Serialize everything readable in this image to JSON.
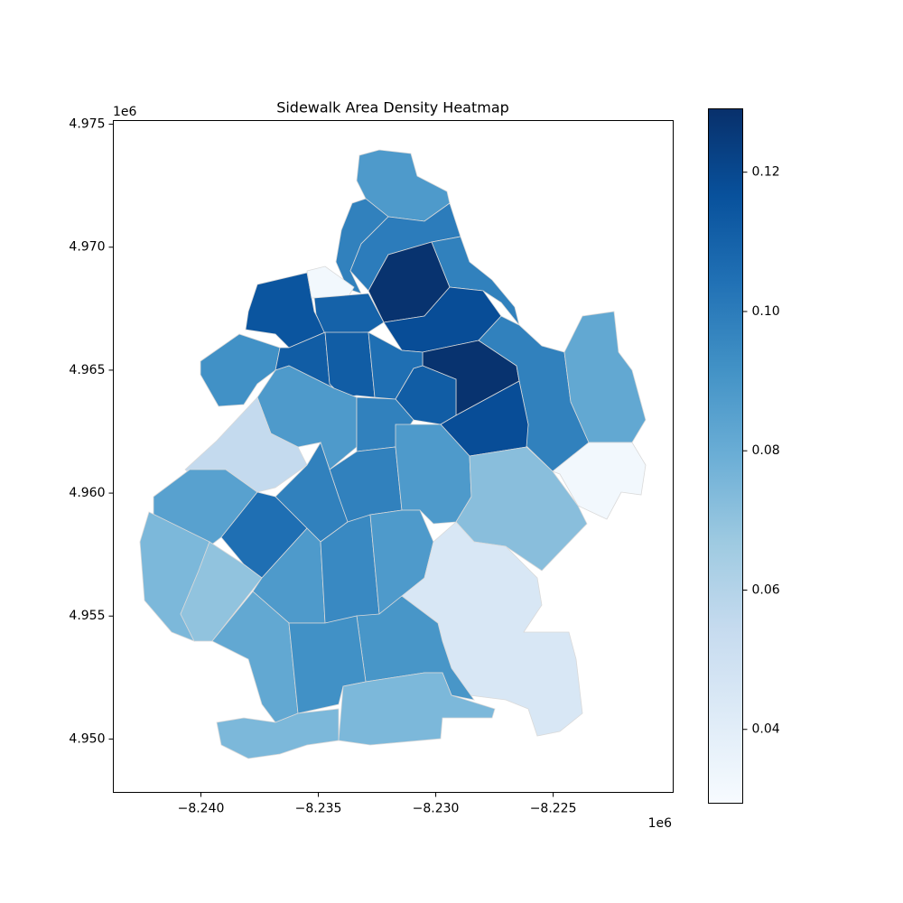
{
  "chart_data": {
    "type": "choropleth",
    "title": "Sidewalk Area Density Heatmap",
    "values": [
      0.088,
      0.098,
      0.1,
      0.128,
      0.098,
      0.115,
      0.032,
      0.11,
      0.118,
      0.128,
      0.098,
      0.082,
      0.032,
      0.092,
      0.112,
      0.112,
      0.105,
      0.112,
      0.088,
      0.098,
      0.118,
      0.055,
      0.098,
      0.098,
      0.088,
      0.072,
      0.085,
      0.105,
      0.075,
      0.07,
      0.088,
      0.095,
      0.088,
      0.045,
      0.09,
      0.082,
      0.092,
      0.075,
      0.075
    ],
    "colormap": "Blues",
    "clim": [
      0.0294,
      0.1291
    ],
    "cticks": [
      0.04,
      0.06,
      0.08,
      {
        "value": 0.1,
        "label": "0.10"
      },
      0.12
    ],
    "xlim": [
      -8.24373,
      -8.21989
    ],
    "xticks": [
      {
        "value": -8.24,
        "label": "−8.240"
      },
      {
        "value": -8.235,
        "label": "−8.235"
      },
      {
        "value": -8.23,
        "label": "−8.230"
      },
      {
        "value": -8.225,
        "label": "−8.225"
      }
    ],
    "x_offset_label": "1e6",
    "ylim": [
      4.94783,
      4.97515
    ],
    "yticks": [
      {
        "value": 4.95,
        "label": "4.950"
      },
      {
        "value": 4.955,
        "label": "4.955"
      },
      {
        "value": 4.96,
        "label": "4.960"
      },
      {
        "value": 4.965,
        "label": "4.965"
      },
      {
        "value": 4.97,
        "label": "4.970"
      },
      {
        "value": 4.975,
        "label": "4.975"
      }
    ],
    "y_offset_label": "1e6"
  }
}
